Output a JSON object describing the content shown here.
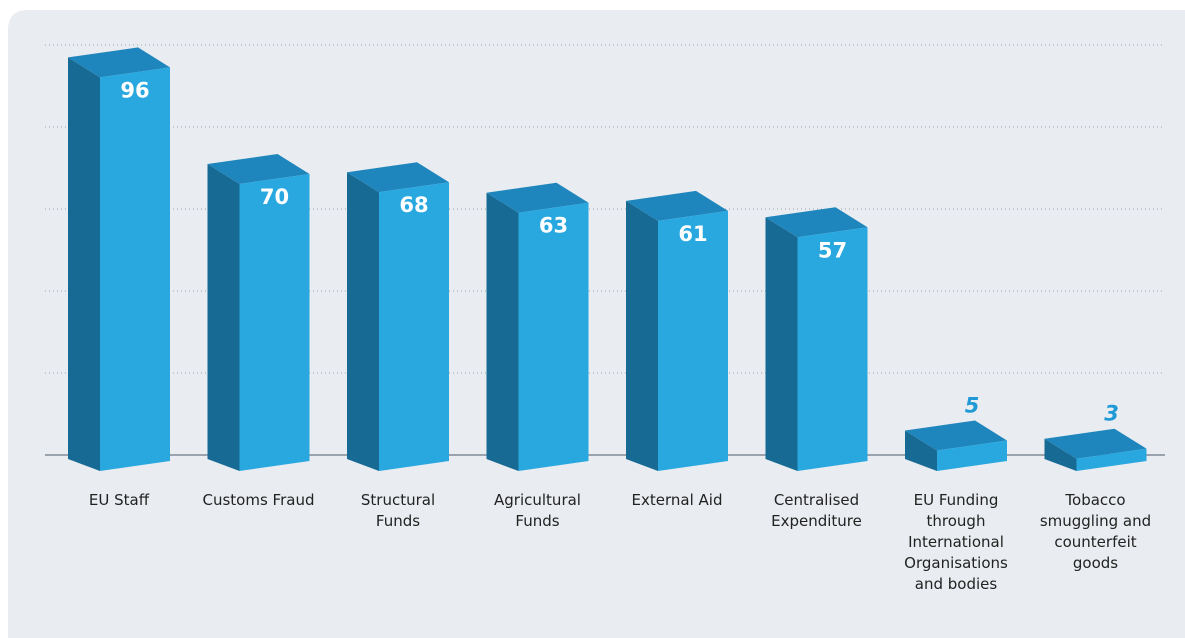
{
  "chart_data": {
    "type": "bar3d",
    "categories": [
      "EU Staff",
      "Customs Fraud",
      "Structural Funds",
      "Agricultural Funds",
      "External Aid",
      "Centralised Expenditure",
      "EU Funding through International Organisations and bodies",
      "Tobacco smuggling and counterfeit goods"
    ],
    "values": [
      96,
      70,
      68,
      63,
      61,
      57,
      5,
      3
    ],
    "color": "#29a8e0",
    "ylim": [
      0,
      100
    ],
    "yticks": [
      0,
      20,
      40,
      60,
      80,
      100
    ],
    "grid": true
  }
}
